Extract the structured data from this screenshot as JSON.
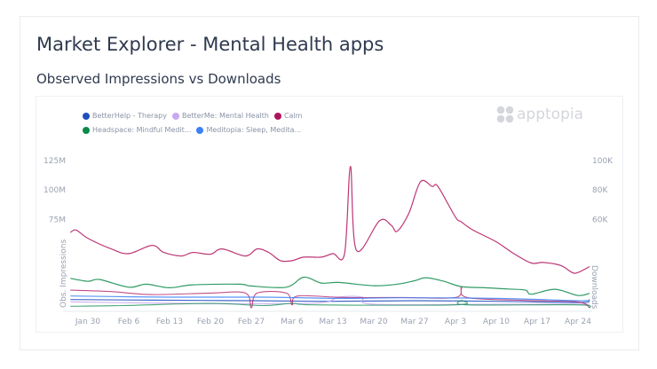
{
  "page": {
    "title": "Market Explorer - Mental Health apps",
    "subtitle": "Observed Impressions vs Downloads"
  },
  "logo": {
    "text": "apptopia"
  },
  "chart_data": {
    "type": "line",
    "xlabel": "",
    "ylabel_left": "Obs. Impressions",
    "ylabel_right": "Downloads",
    "x_ticks": [
      "Jan 30",
      "Feb 6",
      "Feb 13",
      "Feb 20",
      "Feb 27",
      "Mar 6",
      "Mar 13",
      "Mar 20",
      "Mar 27",
      "Apr 3",
      "Apr 10",
      "Apr 17",
      "Apr 24"
    ],
    "x_tick_dates": [
      "01-30",
      "02-06",
      "02-13",
      "02-20",
      "02-27",
      "03-06",
      "03-13",
      "03-20",
      "03-27",
      "04-03",
      "04-10",
      "04-17",
      "04-24"
    ],
    "y_left_ticks": [
      {
        "value": 75,
        "label": "75M"
      },
      {
        "value": 100,
        "label": "100M"
      },
      {
        "value": 125,
        "label": "125M"
      }
    ],
    "y_right_ticks": [
      {
        "value": 60,
        "label": "60K"
      },
      {
        "value": 80,
        "label": "80K"
      },
      {
        "value": 100,
        "label": "100K"
      }
    ],
    "y_left_unit": "M",
    "y_right_unit": "K",
    "ylim_left": [
      0,
      125
    ],
    "ylim_right": [
      0,
      100
    ],
    "grid": false,
    "legend_placement": "top-left",
    "series": [
      {
        "name": "BetterHelp - Therapy",
        "color": "#1f4fbf",
        "impressions": [
          [
            "01-27",
            7
          ],
          [
            "02-10",
            6.5
          ],
          [
            "02-27",
            6
          ],
          [
            "03-13",
            5.5
          ],
          [
            "03-27",
            6
          ],
          [
            "04-10",
            5.5
          ],
          [
            "04-24",
            4.5
          ],
          [
            "04-26",
            6
          ]
        ],
        "downloads": []
      },
      {
        "name": "BetterMe: Mental Health",
        "color": "#c9a8f0",
        "impressions": [
          [
            "01-27",
            5
          ],
          [
            "02-20",
            3.5
          ],
          [
            "03-10",
            4
          ],
          [
            "03-14",
            9
          ],
          [
            "03-18",
            9
          ],
          [
            "03-20",
            3
          ],
          [
            "04-10",
            3
          ],
          [
            "04-26",
            3
          ]
        ],
        "downloads": []
      },
      {
        "name": "Calm",
        "color": "#b0135d",
        "impressions": [
          [
            "01-27",
            64
          ],
          [
            "01-28",
            66
          ],
          [
            "01-30",
            59
          ],
          [
            "02-03",
            50
          ],
          [
            "02-06",
            46
          ],
          [
            "02-10",
            53
          ],
          [
            "02-12",
            47
          ],
          [
            "02-15",
            44
          ],
          [
            "02-17",
            47
          ],
          [
            "02-20",
            45.5
          ],
          [
            "02-22",
            50
          ],
          [
            "02-26",
            44
          ],
          [
            "02-28",
            50
          ],
          [
            "03-02",
            47
          ],
          [
            "03-04",
            40
          ],
          [
            "03-06",
            40
          ],
          [
            "03-08",
            43
          ],
          [
            "03-11",
            43
          ],
          [
            "03-13",
            46
          ],
          [
            "03-15",
            46
          ],
          [
            "03-16",
            120
          ],
          [
            "03-17",
            49
          ],
          [
            "03-21",
            74
          ],
          [
            "03-23",
            70
          ],
          [
            "03-24",
            65
          ],
          [
            "03-26",
            80
          ],
          [
            "03-28",
            107
          ],
          [
            "03-30",
            103
          ],
          [
            "03-31",
            103
          ],
          [
            "04-03",
            77
          ],
          [
            "04-04",
            73
          ],
          [
            "04-06",
            66
          ],
          [
            "04-10",
            56
          ],
          [
            "04-13",
            46
          ],
          [
            "04-16",
            38
          ],
          [
            "04-18",
            38.5
          ],
          [
            "04-21",
            36
          ],
          [
            "04-23",
            30
          ],
          [
            "04-24",
            30
          ],
          [
            "04-26",
            35
          ]
        ],
        "downloads": [
          [
            "01-27",
            12
          ],
          [
            "02-03",
            11
          ],
          [
            "02-10",
            9
          ],
          [
            "02-20",
            10
          ],
          [
            "02-26",
            10
          ],
          [
            "02-27",
            0
          ],
          [
            "02-28",
            10
          ],
          [
            "03-05",
            10
          ],
          [
            "03-06",
            2
          ],
          [
            "03-07",
            8
          ],
          [
            "03-15",
            7
          ],
          [
            "03-25",
            7
          ],
          [
            "04-03",
            7
          ],
          [
            "04-04",
            14
          ],
          [
            "04-05",
            7
          ],
          [
            "04-15",
            5
          ],
          [
            "04-24",
            4
          ],
          [
            "04-26",
            0
          ]
        ]
      },
      {
        "name": "Headspace: Mindful Medit...",
        "color": "#0a8a4a",
        "impressions": [
          [
            "01-27",
            25
          ],
          [
            "01-30",
            22.5
          ],
          [
            "02-01",
            24
          ],
          [
            "02-06",
            17.5
          ],
          [
            "02-09",
            20
          ],
          [
            "02-13",
            17
          ],
          [
            "02-17",
            19.5
          ],
          [
            "02-25",
            20
          ],
          [
            "02-27",
            18.5
          ],
          [
            "03-05",
            17.5
          ],
          [
            "03-08",
            26
          ],
          [
            "03-11",
            21
          ],
          [
            "03-14",
            21.5
          ],
          [
            "03-20",
            18.75
          ],
          [
            "03-24",
            20
          ],
          [
            "03-27",
            23
          ],
          [
            "03-29",
            25.5
          ],
          [
            "04-01",
            22.5
          ],
          [
            "04-04",
            18
          ],
          [
            "04-08",
            17
          ],
          [
            "04-12",
            16
          ],
          [
            "04-15",
            15
          ],
          [
            "04-16",
            11.5
          ],
          [
            "04-20",
            15.75
          ],
          [
            "04-24",
            10.5
          ],
          [
            "04-26",
            12.25
          ]
        ],
        "downloads": [
          [
            "01-27",
            1
          ],
          [
            "02-05",
            1.5
          ],
          [
            "02-20",
            3
          ],
          [
            "03-01",
            1.5
          ],
          [
            "03-06",
            3
          ],
          [
            "03-10",
            2
          ],
          [
            "04-03",
            2
          ],
          [
            "04-04",
            5
          ],
          [
            "04-05",
            2
          ],
          [
            "04-24",
            2
          ],
          [
            "04-26",
            0
          ]
        ]
      },
      {
        "name": "Meditopia: Sleep, Medita...",
        "color": "#3b82f6",
        "impressions": [
          [
            "01-27",
            10
          ],
          [
            "02-13",
            9
          ],
          [
            "03-01",
            9
          ],
          [
            "03-15",
            8
          ],
          [
            "03-25",
            8.5
          ],
          [
            "04-10",
            8
          ],
          [
            "04-24",
            6
          ],
          [
            "04-26",
            7
          ]
        ],
        "downloads": []
      }
    ]
  }
}
